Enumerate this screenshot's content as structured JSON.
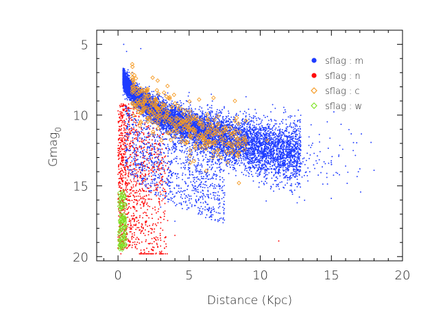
{
  "chart_data": {
    "type": "scatter",
    "title": "",
    "xlabel": "Distance (Kpc)",
    "ylabel": {
      "base": "Gmag",
      "subscript": "0"
    },
    "xlim": [
      -1.5,
      20.0
    ],
    "ylim": [
      20.3,
      4.0
    ],
    "y_inverted": true,
    "xticks": [
      0,
      5,
      10,
      15,
      20
    ],
    "yticks": [
      5,
      10,
      15,
      20
    ],
    "grid": false,
    "legend_position": "top-right",
    "series": [
      {
        "name": "sflag : m",
        "color": "#1f3cff",
        "marker": "dot",
        "count_estimate": 9000,
        "description": "dense band from about 7 mag at d≈0.5 kpc fanning out to about 13 mag at d≈12 kpc, tail to d≈18 kpc",
        "points_sample": [
          [
            0.4,
            5.0
          ],
          [
            0.6,
            5.5
          ],
          [
            1.6,
            5.3
          ],
          [
            1.0,
            7.0
          ],
          [
            1.5,
            7.8
          ],
          [
            2.0,
            8.5
          ],
          [
            3.0,
            9.5
          ],
          [
            4.0,
            10.3
          ],
          [
            5.0,
            11.0
          ],
          [
            6.0,
            11.5
          ],
          [
            7.0,
            12.0
          ],
          [
            8.0,
            12.3
          ],
          [
            9.0,
            12.7
          ],
          [
            10.0,
            12.9
          ],
          [
            11.0,
            13.1
          ],
          [
            12.0,
            13.3
          ],
          [
            13.0,
            13.3
          ],
          [
            14.0,
            13.4
          ],
          [
            15.0,
            13.5
          ],
          [
            16.0,
            13.6
          ],
          [
            17.0,
            13.8
          ],
          [
            18.0,
            13.9
          ],
          [
            9.0,
            8.7
          ],
          [
            5.0,
            8.4
          ],
          [
            3.0,
            16.5
          ],
          [
            4.0,
            17.5
          ]
        ]
      },
      {
        "name": "sflag : n",
        "color": "#ff0a0a",
        "marker": "dot",
        "count_estimate": 1200,
        "description": "concentrated at d<2 kpc spanning about 9 to 19.5 mag",
        "points_sample": [
          [
            0.3,
            10.0
          ],
          [
            0.5,
            12.0
          ],
          [
            0.8,
            13.0
          ],
          [
            1.0,
            14.0
          ],
          [
            1.2,
            15.5
          ],
          [
            0.6,
            17.0
          ],
          [
            1.5,
            16.0
          ],
          [
            2.0,
            17.5
          ],
          [
            3.0,
            18.0
          ],
          [
            4.0,
            18.5
          ],
          [
            11.3,
            18.9
          ],
          [
            0.2,
            19.8
          ]
        ]
      },
      {
        "name": "sflag : c",
        "color": "#f59a23",
        "marker": "diamond",
        "count_estimate": 350,
        "description": "open diamonds scattered through the main band, d≈1–9 kpc, 7–13 mag",
        "points_sample": [
          [
            1.0,
            6.4
          ],
          [
            2.0,
            8.3
          ],
          [
            3.0,
            9.5
          ],
          [
            4.0,
            10.5
          ],
          [
            5.0,
            11.0
          ],
          [
            6.0,
            11.8
          ],
          [
            7.0,
            12.5
          ],
          [
            8.0,
            12.7
          ],
          [
            9.0,
            10.4
          ],
          [
            10.5,
            11.8
          ],
          [
            5.7,
            8.9
          ],
          [
            8.5,
            14.8
          ]
        ]
      },
      {
        "name": "sflag : w",
        "color": "#7fe326",
        "marker": "diamond",
        "count_estimate": 70,
        "description": "very nearby, d≈0.1–0.5 kpc, 15.5–19.5 mag",
        "points_sample": [
          [
            0.1,
            15.5
          ],
          [
            0.2,
            16.5
          ],
          [
            0.3,
            17.5
          ],
          [
            0.4,
            18.5
          ],
          [
            0.5,
            19.2
          ],
          [
            0.3,
            19.5
          ]
        ]
      }
    ]
  }
}
